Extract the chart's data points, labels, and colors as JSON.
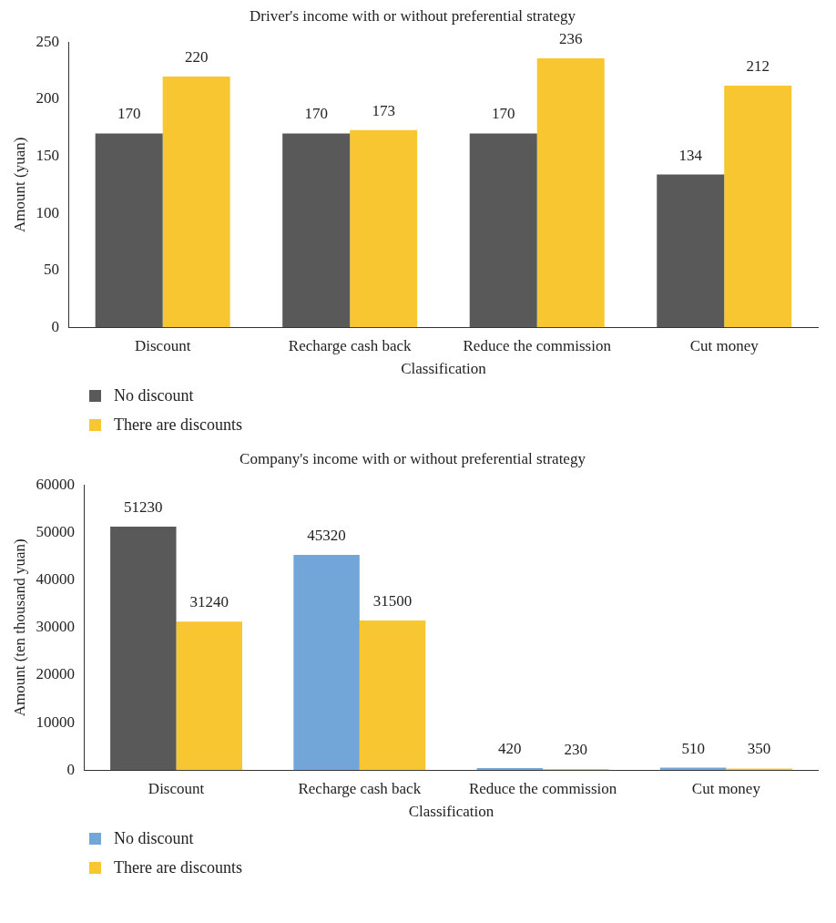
{
  "chart_data": [
    {
      "type": "bar",
      "title": "Driver's income with or without preferential strategy",
      "xlabel": "Classification",
      "ylabel": "Amount (yuan)",
      "categories": [
        "Discount",
        "Recharge cash back",
        "Reduce the commission",
        "Cut money"
      ],
      "series": [
        {
          "name": "No discount",
          "color": "#595959",
          "values": [
            170,
            170,
            170,
            134
          ]
        },
        {
          "name": "There are discounts",
          "color": "#f7c631",
          "values": [
            220,
            173,
            236,
            212
          ]
        }
      ],
      "ylim": [
        0,
        250
      ],
      "yticks": [
        0,
        50,
        100,
        150,
        200,
        250
      ],
      "grid": false,
      "legend": "bottom left",
      "data_labels": true
    },
    {
      "type": "bar",
      "title": "Company's income with or without preferential strategy",
      "xlabel": "Classification",
      "ylabel": "Amount (ten thousand yuan)",
      "categories": [
        "Discount",
        "Recharge cash back",
        "Reduce the commission",
        "Cut money"
      ],
      "series": [
        {
          "name": "No discount",
          "color": "#72a5d8",
          "colors": [
            "#595959",
            "#72a5d8",
            "#72a5d8",
            "#72a5d8"
          ],
          "values": [
            51230,
            45320,
            420,
            510
          ]
        },
        {
          "name": "There are discounts",
          "color": "#f7c631",
          "values": [
            31240,
            31500,
            230,
            350
          ]
        }
      ],
      "ylim": [
        0,
        60000
      ],
      "yticks": [
        0,
        10000,
        20000,
        30000,
        40000,
        50000,
        60000
      ],
      "grid": false,
      "legend": "bottom left",
      "data_labels": true
    }
  ]
}
